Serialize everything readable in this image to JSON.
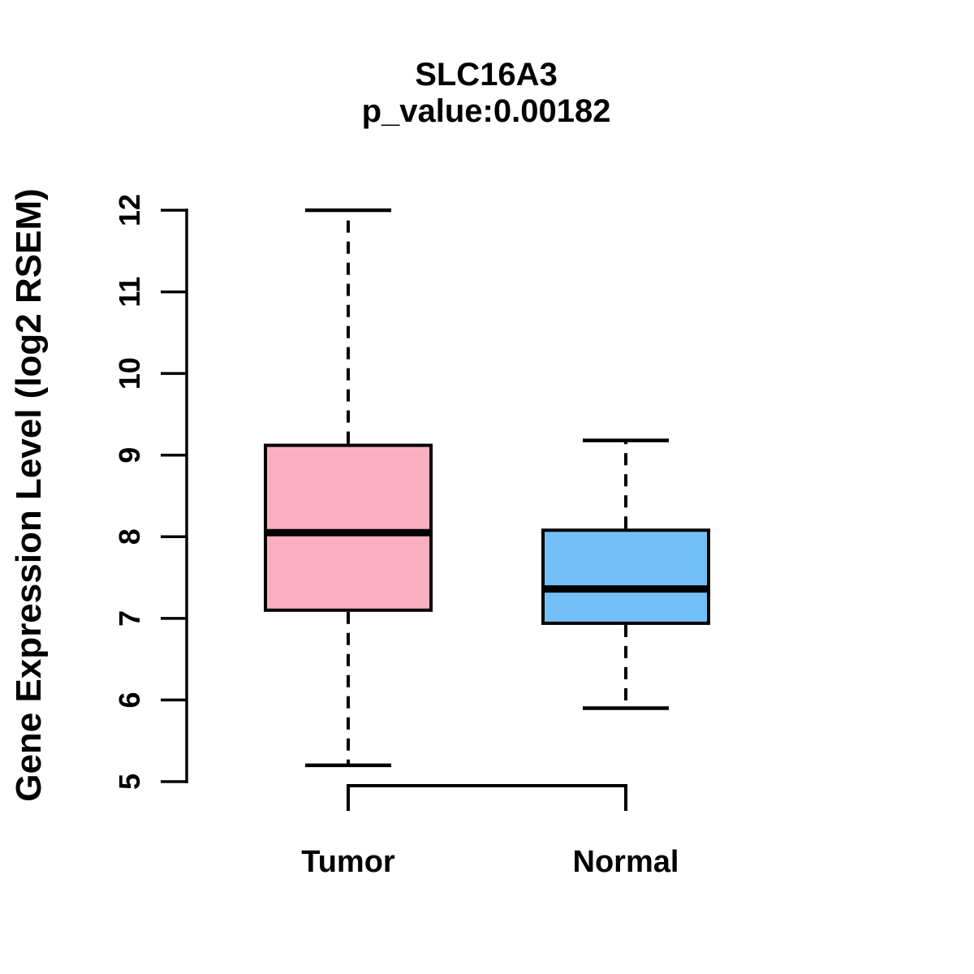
{
  "chart_data": {
    "type": "boxplot",
    "title": "SLC16A3",
    "subtitle": "p_value:0.00182",
    "ylabel": "Gene Expression Level (log2 RSEM)",
    "xlabel": "",
    "ylim": [
      5,
      12
    ],
    "yticks": [
      5,
      6,
      7,
      8,
      9,
      10,
      11,
      12
    ],
    "grid": false,
    "legend": "none",
    "groups": [
      {
        "label": "Tumor",
        "color": "#FCAEC1",
        "whisker_low": 5.2,
        "q1": 7.1,
        "median": 8.05,
        "q3": 9.12,
        "whisker_high": 12.0
      },
      {
        "label": "Normal",
        "color": "#73C0F8",
        "whisker_low": 5.9,
        "q1": 6.94,
        "median": 7.36,
        "q3": 8.08,
        "whisker_high": 9.18
      }
    ]
  },
  "colors": {
    "background": "#FFFFFF",
    "axis": "#000000",
    "tumor_fill": "#FCAEC1",
    "normal_fill": "#73C0F8",
    "box_border": "#000000"
  }
}
